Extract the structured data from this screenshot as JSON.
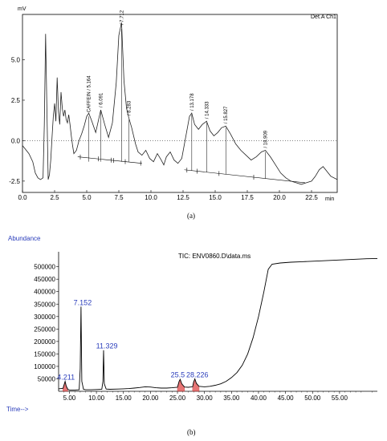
{
  "chart_data": [
    {
      "type": "line",
      "panel_caption": "(a)",
      "ylabel": "mV",
      "xlabel": "min",
      "legend": "Det.A Ch1",
      "xlim": [
        0,
        24.5
      ],
      "ylim": [
        -3.2,
        7.8
      ],
      "x_ticks": [
        0.0,
        2.5,
        5.0,
        7.5,
        10.0,
        12.5,
        15.0,
        17.5,
        20.0,
        22.5
      ],
      "x_tick_labels": [
        "0.0",
        "2.5",
        "5.0",
        "7.5",
        "10.0",
        "12.5",
        "15.0",
        "17.5",
        "20.0",
        "22.5"
      ],
      "y_ticks": [
        -2.5,
        0.0,
        2.5,
        5.0
      ],
      "y_tick_labels": [
        "-2.5",
        "0.0",
        "2.5",
        "5.0"
      ],
      "peaks": [
        {
          "label": "CAFFEIN / 5.164",
          "x": 5.164,
          "y": 1.6
        },
        {
          "label": "/ 6.091",
          "x": 6.091,
          "y": 1.9
        },
        {
          "label": "/ 7.712",
          "x": 7.712,
          "y": 7.0
        },
        {
          "label": "/ 8.283",
          "x": 8.283,
          "y": 1.4
        },
        {
          "label": "/ 13.178",
          "x": 13.178,
          "y": 1.7
        },
        {
          "label": "/ 14.333",
          "x": 14.333,
          "y": 1.2
        },
        {
          "label": "/ 15.827",
          "x": 15.827,
          "y": 0.9
        },
        {
          "label": "/ 18.909",
          "x": 18.909,
          "y": -0.6
        }
      ],
      "x": [
        0.0,
        0.5,
        0.8,
        1.0,
        1.2,
        1.4,
        1.6,
        1.7,
        1.8,
        1.9,
        2.0,
        2.1,
        2.2,
        2.3,
        2.4,
        2.5,
        2.6,
        2.7,
        2.8,
        2.9,
        3.0,
        3.1,
        3.2,
        3.3,
        3.4,
        3.5,
        3.6,
        3.7,
        3.8,
        3.9,
        4.0,
        4.2,
        4.4,
        4.6,
        4.8,
        5.0,
        5.164,
        5.4,
        5.7,
        6.091,
        6.4,
        6.7,
        7.0,
        7.3,
        7.5,
        7.712,
        7.9,
        8.1,
        8.283,
        8.5,
        8.8,
        9.0,
        9.3,
        9.6,
        9.9,
        10.2,
        10.5,
        10.8,
        11.0,
        11.2,
        11.5,
        11.8,
        12.1,
        12.4,
        12.7,
        13.0,
        13.178,
        13.4,
        13.7,
        14.0,
        14.333,
        14.6,
        14.9,
        15.2,
        15.5,
        15.827,
        16.2,
        16.6,
        17.0,
        17.4,
        17.8,
        18.2,
        18.6,
        18.909,
        19.3,
        19.7,
        20.1,
        20.5,
        20.9,
        21.3,
        21.7,
        22.1,
        22.5,
        22.8,
        23.1,
        23.4,
        23.7,
        24.0,
        24.5
      ],
      "y": [
        -0.3,
        -0.8,
        -1.3,
        -2.0,
        -2.3,
        -2.4,
        -2.3,
        1.0,
        6.6,
        2.0,
        -2.4,
        -2.1,
        -1.2,
        0.2,
        1.5,
        2.3,
        1.2,
        3.9,
        1.8,
        1.0,
        3.0,
        2.0,
        1.5,
        1.9,
        1.3,
        1.1,
        1.6,
        1.0,
        0.3,
        -0.3,
        -0.8,
        -0.6,
        0.0,
        0.4,
        0.9,
        1.5,
        1.7,
        1.2,
        0.5,
        1.9,
        1.0,
        0.2,
        1.1,
        3.6,
        6.5,
        7.3,
        3.7,
        2.0,
        1.4,
        0.8,
        -0.2,
        -0.7,
        -0.9,
        -0.6,
        -1.1,
        -1.3,
        -0.8,
        -1.2,
        -1.5,
        -1.0,
        -0.7,
        -1.2,
        -1.4,
        -1.1,
        0.2,
        1.5,
        1.7,
        1.0,
        0.7,
        1.0,
        1.2,
        0.6,
        0.3,
        0.5,
        0.8,
        0.9,
        0.4,
        -0.2,
        -0.6,
        -0.9,
        -1.2,
        -1.0,
        -0.7,
        -0.6,
        -1.0,
        -1.5,
        -2.0,
        -2.3,
        -2.5,
        -2.6,
        -2.7,
        -2.6,
        -2.5,
        -2.2,
        -1.8,
        -1.6,
        -1.9,
        -2.2,
        -2.4
      ]
    },
    {
      "type": "line",
      "panel_caption": "(b)",
      "ylabel": "Abundance",
      "xlabel": "Time-->",
      "legend": "TIC: ENV0860.D\\data.ms",
      "xlim": [
        3.0,
        62.0
      ],
      "ylim": [
        0,
        560000
      ],
      "x_ticks": [
        5,
        10,
        15,
        20,
        25,
        30,
        35,
        40,
        45,
        50,
        55
      ],
      "x_tick_labels": [
        "5.00",
        "10.00",
        "15.00",
        "20.00",
        "25.00",
        "30.00",
        "35.00",
        "40.00",
        "45.00",
        "50.00",
        "55.00"
      ],
      "y_ticks": [
        50000,
        100000,
        150000,
        200000,
        250000,
        300000,
        350000,
        400000,
        450000,
        500000
      ],
      "y_tick_labels": [
        "50000",
        "100000",
        "150000",
        "200000",
        "250000",
        "300000",
        "350000",
        "400000",
        "450000",
        "500000"
      ],
      "peaks": [
        {
          "label": "4.211",
          "x": 4.211,
          "y": 40000
        },
        {
          "label": "7.152",
          "x": 7.152,
          "y": 340000
        },
        {
          "label": "11.329",
          "x": 11.329,
          "y": 165000
        },
        {
          "label": "25.5",
          "x": 25.5,
          "y": 50000
        },
        {
          "label": "28.226",
          "x": 28.226,
          "y": 50000
        }
      ],
      "x": [
        3.0,
        3.8,
        4.0,
        4.211,
        4.4,
        4.7,
        5.0,
        6.0,
        6.8,
        7.0,
        7.152,
        7.3,
        7.6,
        8.0,
        9.0,
        10.0,
        11.0,
        11.2,
        11.329,
        11.45,
        11.8,
        12.5,
        14.0,
        15.0,
        16.0,
        17.0,
        18.0,
        19.0,
        20.0,
        21.0,
        22.0,
        23.0,
        24.0,
        25.0,
        25.3,
        25.5,
        25.8,
        26.3,
        27.0,
        27.8,
        28.0,
        28.226,
        28.5,
        29.0,
        30.0,
        31.0,
        32.0,
        33.0,
        34.0,
        35.0,
        36.0,
        37.0,
        38.0,
        39.0,
        40.0,
        41.0,
        41.8,
        42.5,
        44.0,
        46.0,
        48.0,
        50.0,
        52.0,
        54.0,
        56.0,
        58.0,
        60.0,
        62.0
      ],
      "y": [
        10000,
        12000,
        25000,
        40000,
        22000,
        8000,
        5000,
        5000,
        6000,
        90000,
        340000,
        40000,
        8000,
        6000,
        6000,
        7000,
        8000,
        40000,
        165000,
        30000,
        9000,
        8000,
        9000,
        10000,
        11000,
        13000,
        15000,
        18000,
        17000,
        14000,
        13000,
        13000,
        14000,
        16000,
        40000,
        48000,
        30000,
        17000,
        16000,
        18000,
        38000,
        50000,
        32000,
        20000,
        18000,
        20000,
        24000,
        30000,
        40000,
        55000,
        75000,
        105000,
        150000,
        215000,
        300000,
        400000,
        490000,
        510000,
        515000,
        518000,
        520000,
        522000,
        524000,
        526000,
        528000,
        530000,
        532000,
        533000
      ]
    }
  ]
}
